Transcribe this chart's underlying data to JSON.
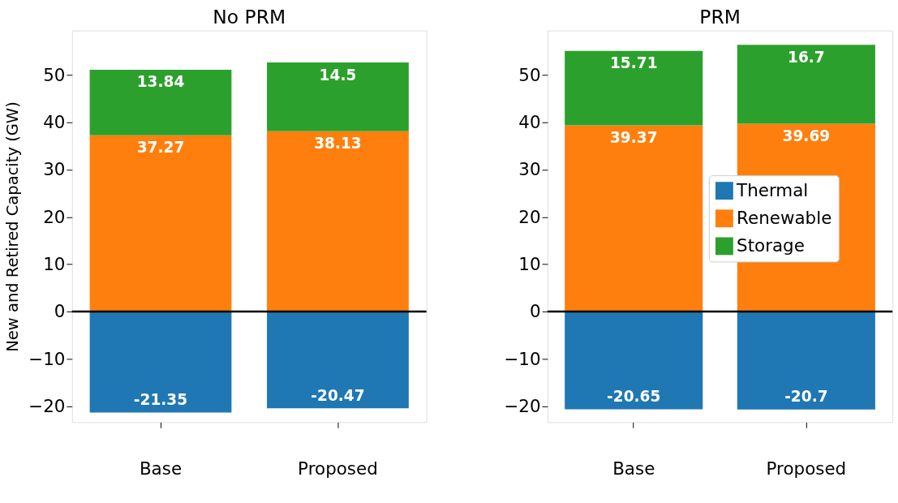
{
  "chart_data": [
    {
      "type": "bar",
      "title": "No PRM",
      "ylabel": "New and Retired Capacity (GW)",
      "stacked": true,
      "categories": [
        "Base",
        "Proposed"
      ],
      "series": [
        {
          "color": "#1f77b4",
          "values": [
            -21.35,
            -20.47
          ]
        },
        {
          "color": "#ff7f0e",
          "values": [
            37.27,
            38.13
          ]
        },
        {
          "color": "#2ca02c",
          "values": [
            13.84,
            14.5
          ]
        }
      ],
      "ylim": [
        -23.4,
        59.4
      ],
      "yticks": [
        -20,
        -10,
        0,
        10,
        20,
        30,
        40,
        50
      ],
      "data_labels": true,
      "grid": false,
      "legend": false,
      "ref_lines": [
        {
          "axis": "y",
          "value": 0,
          "color": "#000000"
        }
      ]
    },
    {
      "type": "bar",
      "title": "PRM",
      "stacked": true,
      "categories": [
        "Base",
        "Proposed"
      ],
      "series": [
        {
          "name": "Thermal",
          "color": "#1f77b4",
          "values": [
            -20.65,
            -20.7
          ]
        },
        {
          "name": "Renewable",
          "color": "#ff7f0e",
          "values": [
            39.37,
            39.69
          ]
        },
        {
          "name": "Storage",
          "color": "#2ca02c",
          "values": [
            15.71,
            16.7
          ]
        }
      ],
      "ylim": [
        -23.4,
        59.4
      ],
      "yticks": [
        -20,
        -10,
        0,
        10,
        20,
        30,
        40,
        50
      ],
      "data_labels": true,
      "grid": false,
      "legend": "right",
      "ref_lines": [
        {
          "axis": "y",
          "value": 0,
          "color": "#000000"
        }
      ]
    }
  ]
}
